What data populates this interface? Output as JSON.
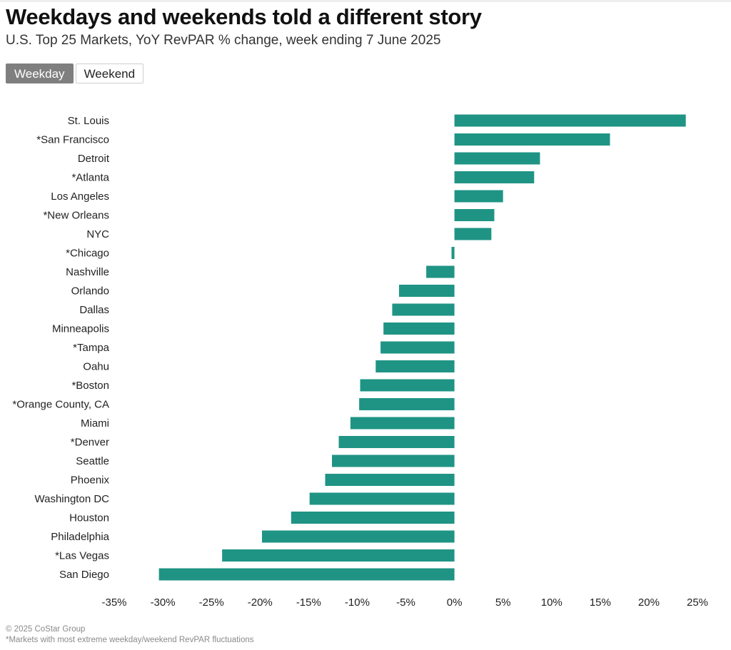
{
  "title": "Weekdays and weekends told a different story",
  "subtitle": "U.S. Top 25 Markets, YoY RevPAR % change, week ending 7 June 2025",
  "toggle": {
    "weekday_label": "Weekday",
    "weekend_label": "Weekend",
    "selected": "Weekday"
  },
  "footer": {
    "copyright": "© 2025 CoStar Group",
    "note": "*Markets with most extreme weekday/weekend RevPAR fluctuations"
  },
  "colors": {
    "bar": "#1f9484",
    "toggle_active": "#7f7f7f"
  },
  "chart_data": {
    "type": "bar",
    "orientation": "horizontal",
    "categories": [
      "St. Louis",
      "*San Francisco",
      "Detroit",
      "*Atlanta",
      "Los Angeles",
      "*New Orleans",
      "NYC",
      "*Chicago",
      "Nashville",
      "Orlando",
      "Dallas",
      "Minneapolis",
      "*Tampa",
      "Oahu",
      "*Boston",
      "*Orange County, CA",
      "Miami",
      "*Denver",
      "Seattle",
      "Phoenix",
      "Washington DC",
      "Houston",
      "Philadelphia",
      "*Las Vegas",
      "San Diego"
    ],
    "values": [
      23.8,
      16.0,
      8.8,
      8.2,
      5.0,
      4.1,
      3.8,
      -0.3,
      -2.9,
      -5.7,
      -6.4,
      -7.3,
      -7.6,
      -8.1,
      -9.7,
      -9.8,
      -10.7,
      -11.9,
      -12.6,
      -13.3,
      -14.9,
      -16.8,
      -19.8,
      -23.9,
      -30.4
    ],
    "xlim": [
      -35,
      25
    ],
    "xticks": [
      "-35%",
      "-30%",
      "-25%",
      "-20%",
      "-15%",
      "-10%",
      "-5%",
      "0%",
      "5%",
      "10%",
      "15%",
      "20%",
      "25%"
    ],
    "xtick_values": [
      -35,
      -30,
      -25,
      -20,
      -15,
      -10,
      -5,
      0,
      5,
      10,
      15,
      20,
      25
    ],
    "grid": false,
    "legend": "none"
  }
}
